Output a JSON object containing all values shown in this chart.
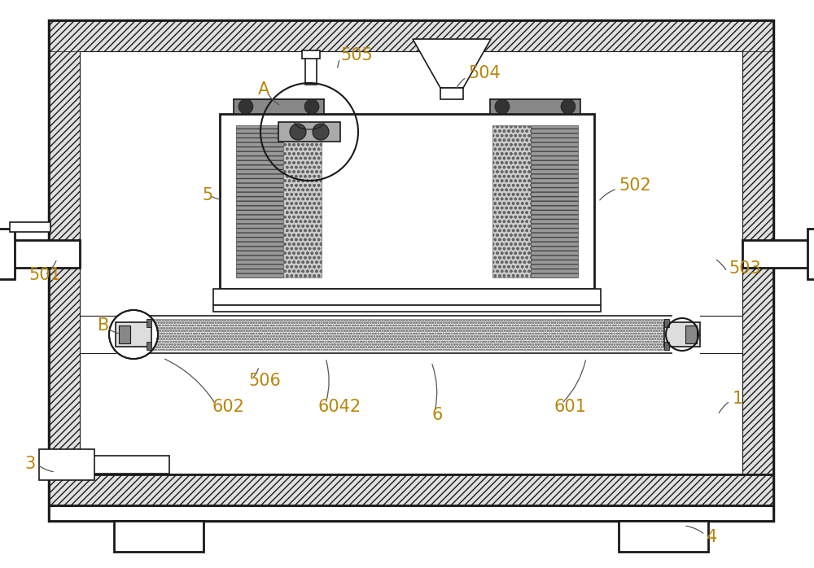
{
  "bg_color": "#ffffff",
  "line_color": "#1a1a1a",
  "label_color": "#b8860b",
  "figsize": [
    10.0,
    6.98
  ],
  "dpi": 100
}
